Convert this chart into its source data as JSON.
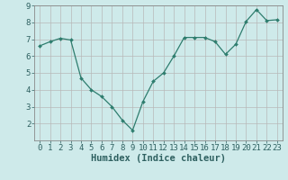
{
  "x": [
    0,
    1,
    2,
    3,
    4,
    5,
    6,
    7,
    8,
    9,
    10,
    11,
    12,
    13,
    14,
    15,
    16,
    17,
    18,
    19,
    20,
    21,
    22,
    23
  ],
  "y": [
    6.6,
    6.85,
    7.05,
    6.95,
    4.7,
    4.0,
    3.6,
    3.0,
    2.2,
    1.6,
    3.3,
    4.5,
    5.0,
    6.0,
    7.1,
    7.1,
    7.1,
    6.85,
    6.1,
    6.7,
    8.05,
    8.75,
    8.1,
    8.15
  ],
  "line_color": "#2e7d6e",
  "marker": "D",
  "marker_size": 2.0,
  "bg_color": "#ceeaea",
  "grid_color_major": "#b8b8b8",
  "grid_color_minor": "#d0d0d0",
  "xlabel": "Humidex (Indice chaleur)",
  "xlim_min": -0.5,
  "xlim_max": 23.5,
  "ylim_min": 1.0,
  "ylim_max": 9.0,
  "yticks": [
    2,
    3,
    4,
    5,
    6,
    7,
    8,
    9
  ],
  "xticks": [
    0,
    1,
    2,
    3,
    4,
    5,
    6,
    7,
    8,
    9,
    10,
    11,
    12,
    13,
    14,
    15,
    16,
    17,
    18,
    19,
    20,
    21,
    22,
    23
  ],
  "tick_font_size": 6.5,
  "xlabel_font_size": 7.5,
  "text_color": "#2e6060"
}
